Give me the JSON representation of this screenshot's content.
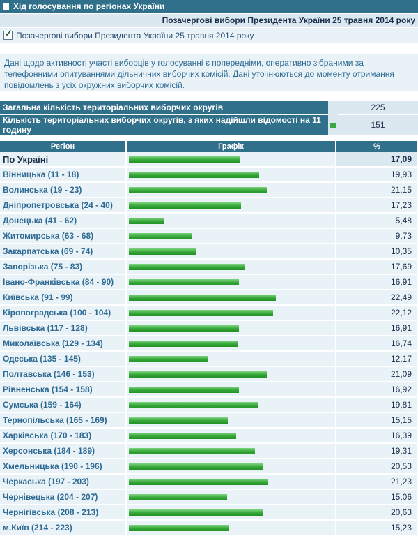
{
  "title": "Хід голосування по регіонах України",
  "election_name": "Позачергові вибори Президента України 25 травня 2014 року",
  "selected_election": "Позачергові вибори Президента України 25 травня 2014 року",
  "notice": "Дані щодо активності участі виборців у голосуванні є попередніми, оперативно зібраними за телефонними опитуваннями дільничних виборчих комісій. Дані уточнюються до моменту отримання повідомлень з усіх окружних виборчих комісій.",
  "summary": [
    {
      "label": "Загальна кількість територіальних виборчих округів",
      "value": "225"
    },
    {
      "label": "Кількість територіальних виборчих округів, з яких надійшли відомості на 11 годину",
      "value": "151"
    }
  ],
  "table": {
    "headers": [
      "Регіон",
      "Графік",
      "%"
    ],
    "scale_max": 30,
    "rows": [
      {
        "region": "По Україні",
        "pct": "17,09",
        "value": 17.09
      },
      {
        "region": "Вінницька (11 - 18)",
        "pct": "19,93",
        "value": 19.93
      },
      {
        "region": "Волинська (19 - 23)",
        "pct": "21,15",
        "value": 21.15
      },
      {
        "region": "Дніпропетровська (24 - 40)",
        "pct": "17,23",
        "value": 17.23
      },
      {
        "region": "Донецька (41 - 62)",
        "pct": "5,48",
        "value": 5.48
      },
      {
        "region": "Житомирська (63 - 68)",
        "pct": "9,73",
        "value": 9.73
      },
      {
        "region": "Закарпатська (69 - 74)",
        "pct": "10,35",
        "value": 10.35
      },
      {
        "region": "Запорізька (75 - 83)",
        "pct": "17,69",
        "value": 17.69
      },
      {
        "region": "Івано-Франківська (84 - 90)",
        "pct": "16,91",
        "value": 16.91
      },
      {
        "region": "Київська (91 - 99)",
        "pct": "22,49",
        "value": 22.49
      },
      {
        "region": "Кіровоградська (100 - 104)",
        "pct": "22,12",
        "value": 22.12
      },
      {
        "region": "Львівська (117 - 128)",
        "pct": "16,91",
        "value": 16.91
      },
      {
        "region": "Миколаївська (129 - 134)",
        "pct": "16,74",
        "value": 16.74
      },
      {
        "region": "Одеська (135 - 145)",
        "pct": "12,17",
        "value": 12.17
      },
      {
        "region": "Полтавська (146 - 153)",
        "pct": "21,09",
        "value": 21.09
      },
      {
        "region": "Рівненська (154 - 158)",
        "pct": "16,92",
        "value": 16.92
      },
      {
        "region": "Сумська (159 - 164)",
        "pct": "19,81",
        "value": 19.81
      },
      {
        "region": "Тернопільська (165 - 169)",
        "pct": "15,15",
        "value": 15.15
      },
      {
        "region": "Харківська (170 - 183)",
        "pct": "16,39",
        "value": 16.39
      },
      {
        "region": "Херсонська (184 - 189)",
        "pct": "19,31",
        "value": 19.31
      },
      {
        "region": "Хмельницька (190 - 196)",
        "pct": "20,53",
        "value": 20.53
      },
      {
        "region": "Черкаська (197 - 203)",
        "pct": "21,23",
        "value": 21.23
      },
      {
        "region": "Чернівецька (204 - 207)",
        "pct": "15,06",
        "value": 15.06
      },
      {
        "region": "Чернігівська (208 - 213)",
        "pct": "20,63",
        "value": 20.63
      },
      {
        "region": "м.Київ (214 - 223)",
        "pct": "15,23",
        "value": 15.23
      }
    ]
  },
  "colors": {
    "header": "#31708a",
    "row": "#e9f2f6",
    "bar": "#35a637",
    "accent_text": "#2f6a94"
  },
  "icons": {
    "title": "square-icon",
    "summary_marker": "green-bar-icon"
  }
}
